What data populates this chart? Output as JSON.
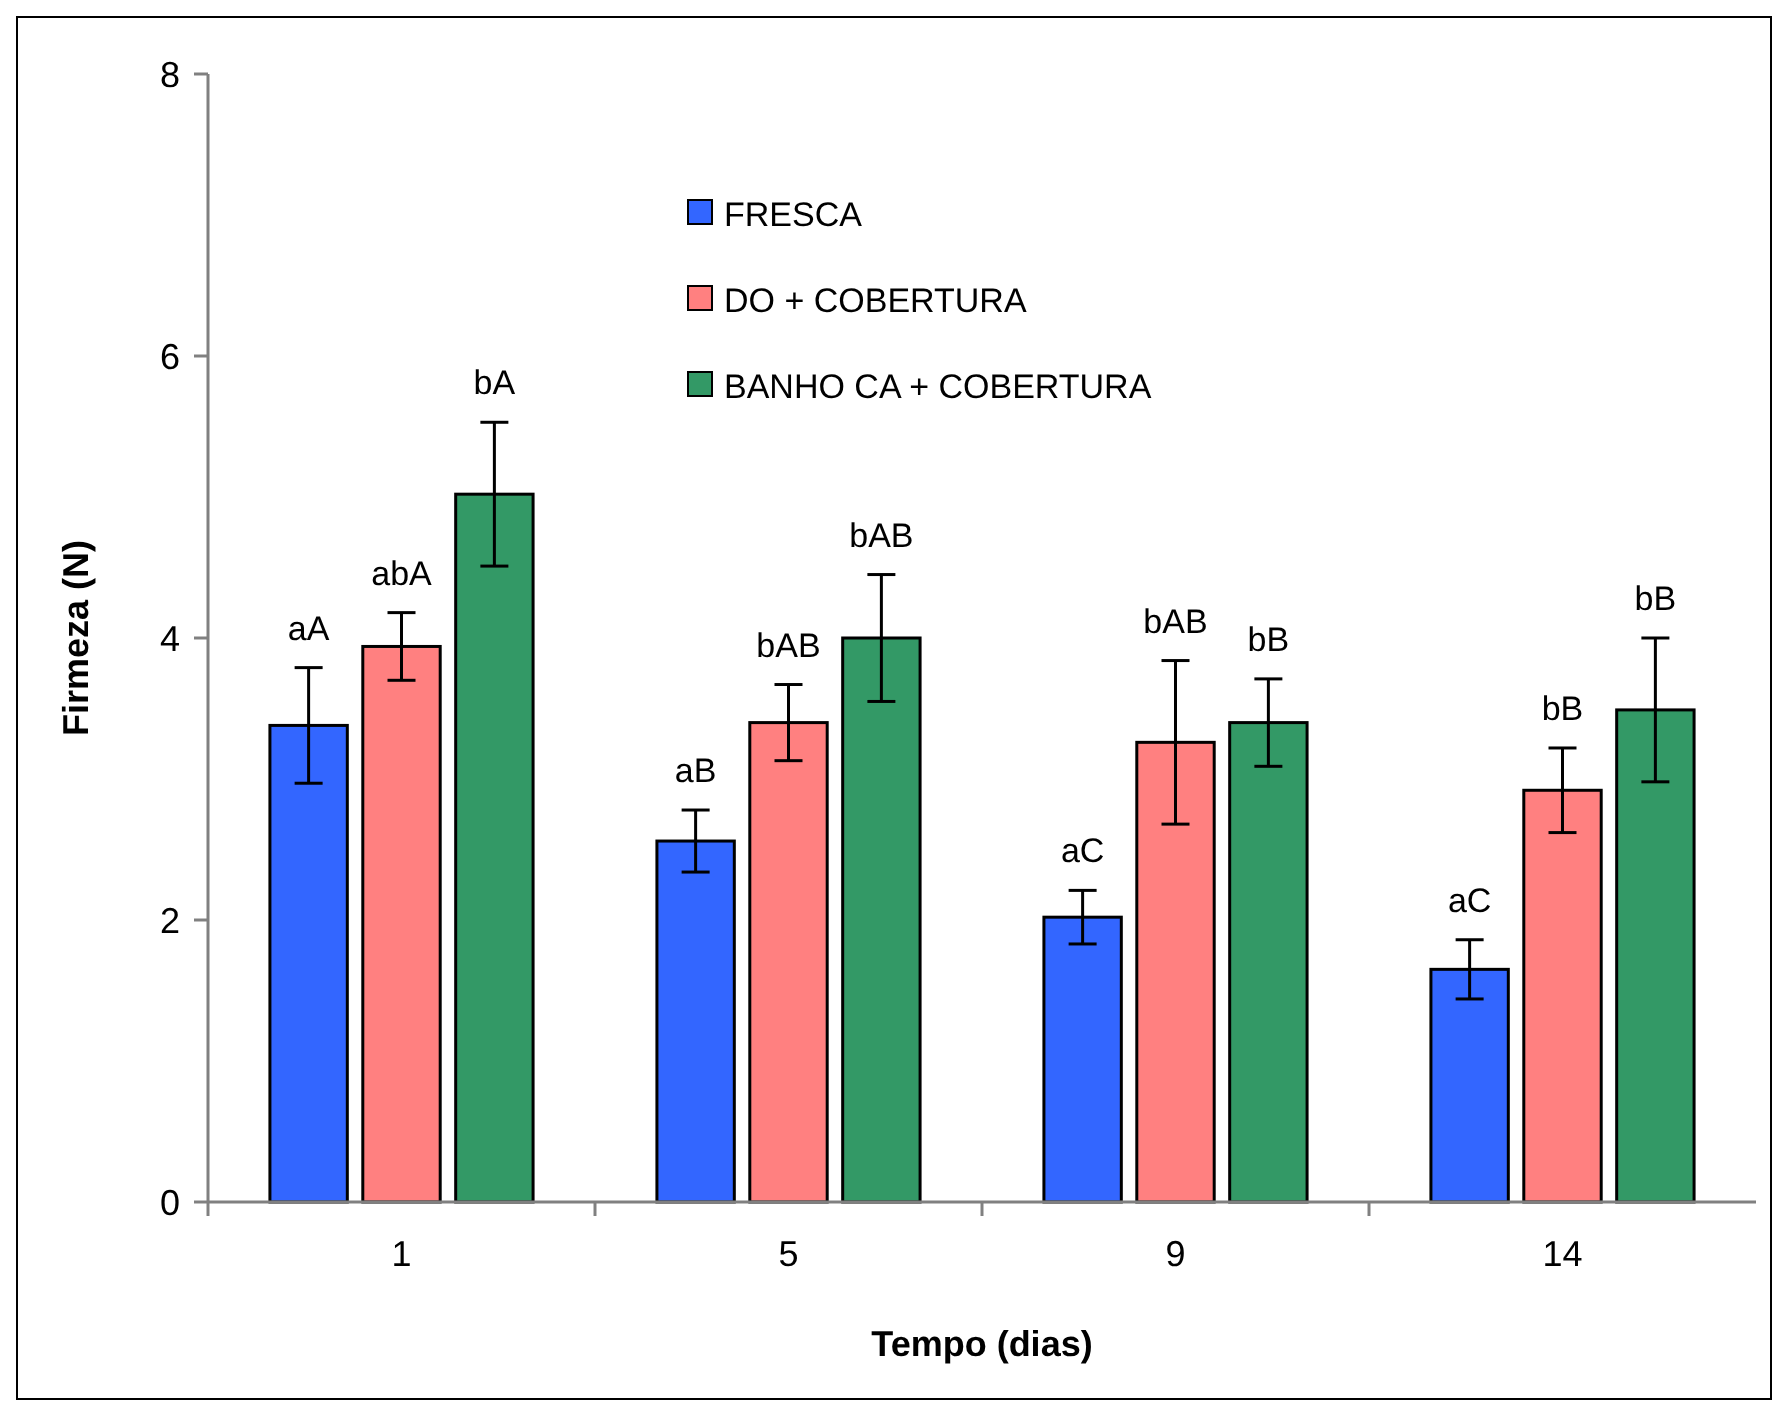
{
  "chart_data": {
    "type": "bar",
    "xlabel": "Tempo (dias)",
    "ylabel": "Firmeza (N)",
    "categories": [
      "1",
      "5",
      "9",
      "14"
    ],
    "ylim": [
      0,
      8
    ],
    "yticks": [
      0,
      2,
      4,
      6,
      8
    ],
    "grid": false,
    "legend": "top",
    "series": [
      {
        "name": "FRESCA",
        "color": "#3366ff",
        "values": [
          3.38,
          2.56,
          2.02,
          1.65
        ],
        "errors": [
          0.41,
          0.22,
          0.19,
          0.21
        ],
        "value_labels": [
          "aA",
          "aB",
          "aC",
          "aC"
        ]
      },
      {
        "name": "DO + COBERTURA",
        "color": "#ff8080",
        "values": [
          3.94,
          3.4,
          3.26,
          2.92
        ],
        "errors": [
          0.24,
          0.27,
          0.58,
          0.3
        ],
        "value_labels": [
          "abA",
          "bAB",
          "bAB",
          "bB"
        ]
      },
      {
        "name": "BANHO CA + COBERTURA",
        "color": "#339966",
        "values": [
          5.02,
          4.0,
          3.4,
          3.49
        ],
        "errors": [
          0.51,
          0.45,
          0.31,
          0.51
        ],
        "value_labels": [
          "bA",
          "bAB",
          "bB",
          "bB"
        ]
      }
    ]
  }
}
